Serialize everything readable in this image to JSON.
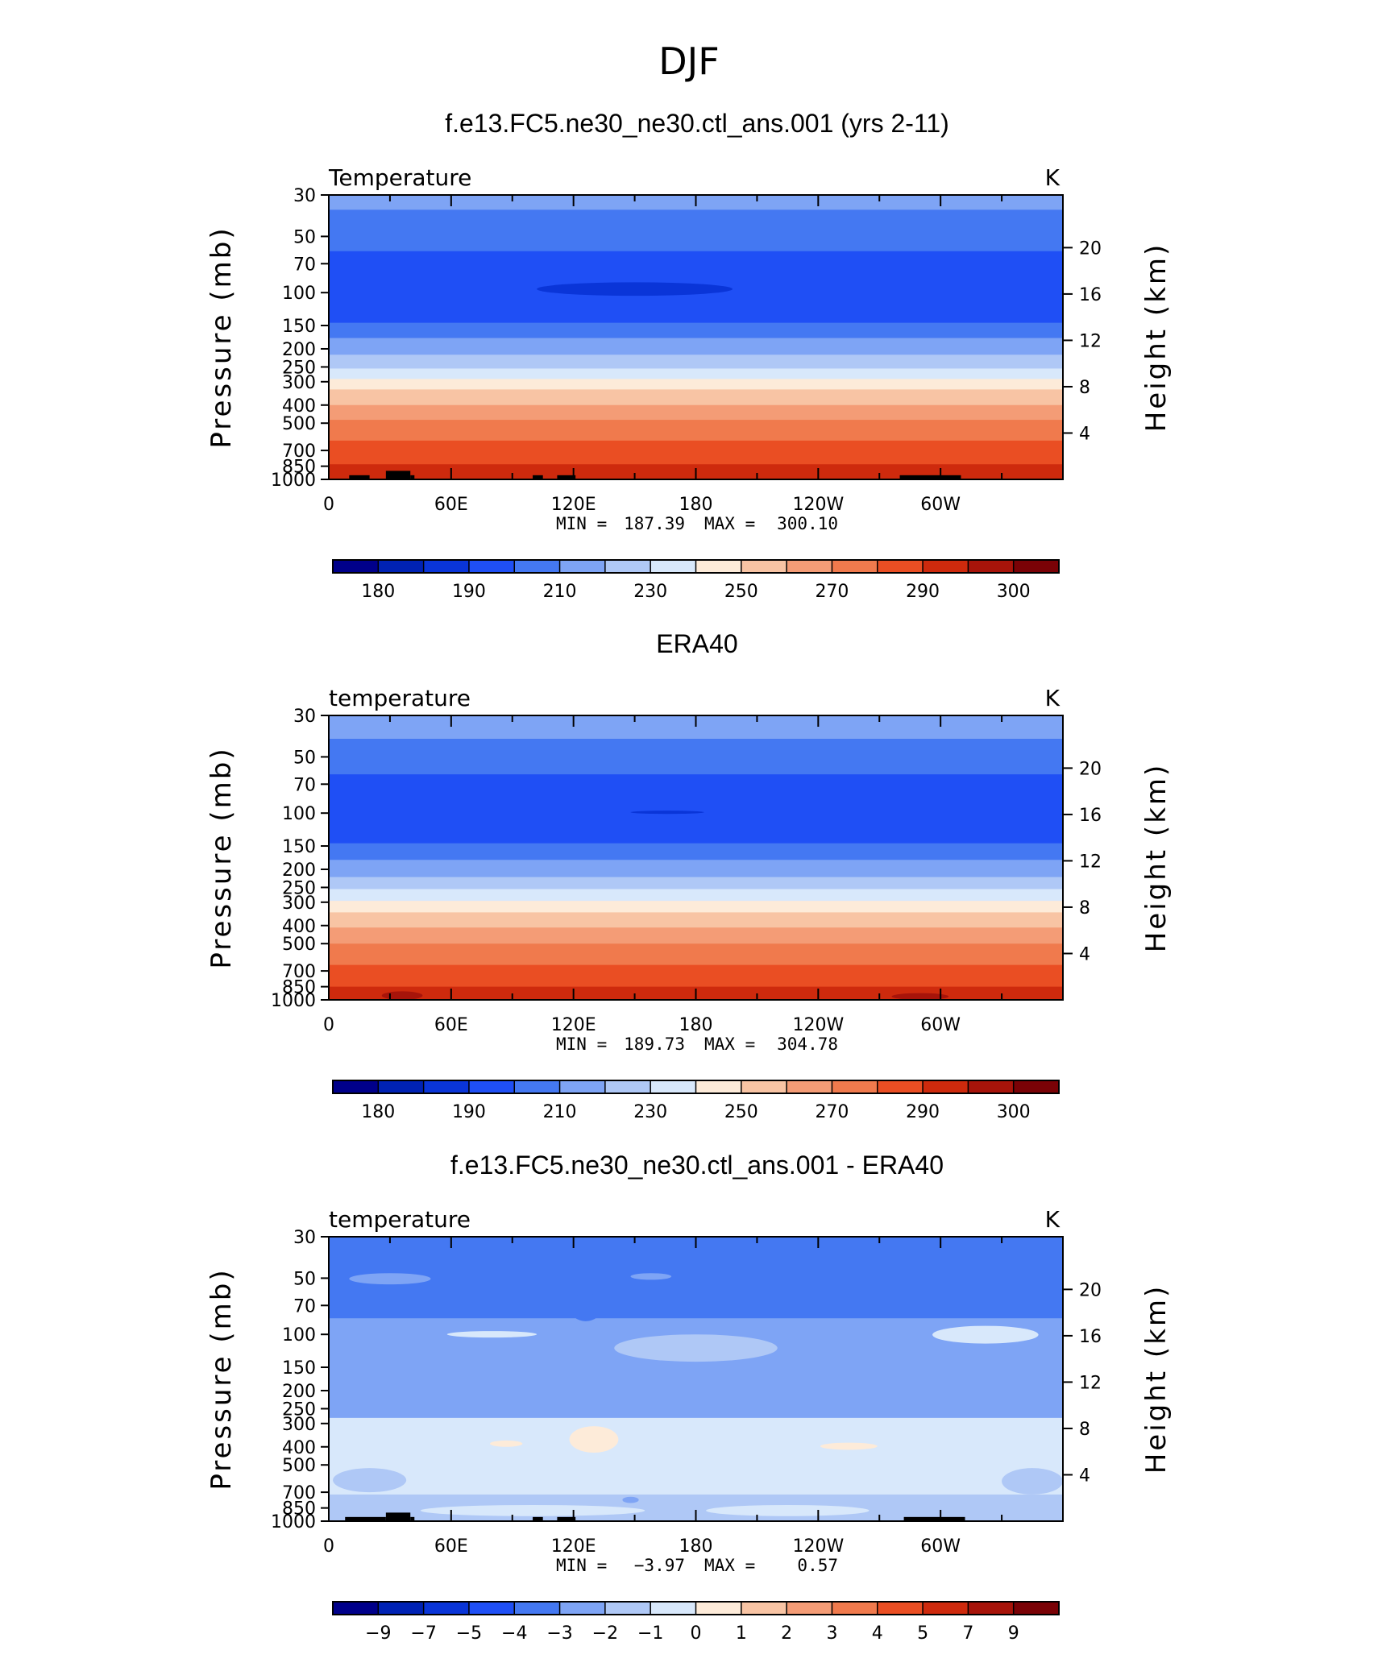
{
  "figure": {
    "main_title": "DJF"
  },
  "chart_data": [
    {
      "type": "heatmap",
      "title": "f.e13.FC5.ne30_ne30.ctl_ans.001 (yrs 2-11)",
      "variable_label": "Temperature",
      "units": "K",
      "ylabel": "Pressure  (mb)",
      "ylabel_right": "Height  (km)",
      "x_ticks": [
        "0",
        "60E",
        "120E",
        "180",
        "120W",
        "60W"
      ],
      "y_ticks_pressure": [
        "30",
        "50",
        "70",
        "100",
        "150",
        "200",
        "250",
        "300",
        "400",
        "500",
        "700",
        "850",
        "1000"
      ],
      "y_ticks_height": [
        "20",
        "16",
        "12",
        "8",
        "4"
      ],
      "y_scale": "log-pressure",
      "min_label": "MIN = ",
      "min_value": "187.39",
      "max_label": "MAX = ",
      "max_value": "300.10",
      "colorbar_labels": [
        "180",
        "190",
        "210",
        "230",
        "250",
        "270",
        "290",
        "300"
      ],
      "colorbar_colors": [
        "#00008a",
        "#0022b4",
        "#0a35d8",
        "#1f4ff5",
        "#4478f2",
        "#7ea4f5",
        "#afc8f6",
        "#d8e8fb",
        "#fdebd9",
        "#f8c4a4",
        "#f49c76",
        "#f07a4d",
        "#ea4e23",
        "#ce2a0d",
        "#a7140a",
        "#7a0206"
      ],
      "contour_bands": [
        {
          "pressure_top": 30,
          "pressure_bottom": 36,
          "color": "#7ea4f5"
        },
        {
          "pressure_top": 36,
          "pressure_bottom": 60,
          "color": "#4478f2"
        },
        {
          "pressure_top": 60,
          "pressure_bottom": 145,
          "color": "#1f4ff5"
        },
        {
          "pressure_top": 145,
          "pressure_bottom": 175,
          "color": "#4478f2"
        },
        {
          "pressure_top": 175,
          "pressure_bottom": 215,
          "color": "#7ea4f5"
        },
        {
          "pressure_top": 215,
          "pressure_bottom": 255,
          "color": "#afc8f6"
        },
        {
          "pressure_top": 255,
          "pressure_bottom": 290,
          "color": "#d8e8fb"
        },
        {
          "pressure_top": 290,
          "pressure_bottom": 330,
          "color": "#fdebd9"
        },
        {
          "pressure_top": 330,
          "pressure_bottom": 400,
          "color": "#f8c4a4"
        },
        {
          "pressure_top": 400,
          "pressure_bottom": 480,
          "color": "#f49c76"
        },
        {
          "pressure_top": 480,
          "pressure_bottom": 620,
          "color": "#f07a4d"
        },
        {
          "pressure_top": 620,
          "pressure_bottom": 830,
          "color": "#ea4e23"
        },
        {
          "pressure_top": 830,
          "pressure_bottom": 1000,
          "color": "#ce2a0d"
        }
      ],
      "features": [
        {
          "kind": "blob",
          "lon_center": 150,
          "pressure": 97,
          "lon_halfwidth": 48,
          "p_top": 88,
          "p_bottom": 104,
          "color": "#0a35d8"
        }
      ],
      "terrain": [
        [
          10,
          20,
          950
        ],
        [
          28,
          40,
          900
        ],
        [
          40,
          42,
          950
        ],
        [
          100,
          105,
          950
        ],
        [
          112,
          121,
          950
        ],
        [
          280,
          310,
          950
        ]
      ]
    },
    {
      "type": "heatmap",
      "title": "ERA40",
      "variable_label": "temperature",
      "units": "K",
      "ylabel": "Pressure  (mb)",
      "ylabel_right": "Height  (km)",
      "x_ticks": [
        "0",
        "60E",
        "120E",
        "180",
        "120W",
        "60W"
      ],
      "y_ticks_pressure": [
        "30",
        "50",
        "70",
        "100",
        "150",
        "200",
        "250",
        "300",
        "400",
        "500",
        "700",
        "850",
        "1000"
      ],
      "y_ticks_height": [
        "20",
        "16",
        "12",
        "8",
        "4"
      ],
      "y_scale": "log-pressure",
      "min_label": "MIN = ",
      "min_value": "189.73",
      "max_label": "MAX = ",
      "max_value": "304.78",
      "colorbar_labels": [
        "180",
        "190",
        "210",
        "230",
        "250",
        "270",
        "290",
        "300"
      ],
      "colorbar_colors": [
        "#00008a",
        "#0022b4",
        "#0a35d8",
        "#1f4ff5",
        "#4478f2",
        "#7ea4f5",
        "#afc8f6",
        "#d8e8fb",
        "#fdebd9",
        "#f8c4a4",
        "#f49c76",
        "#f07a4d",
        "#ea4e23",
        "#ce2a0d",
        "#a7140a",
        "#7a0206"
      ],
      "contour_bands": [
        {
          "pressure_top": 30,
          "pressure_bottom": 40,
          "color": "#7ea4f5"
        },
        {
          "pressure_top": 40,
          "pressure_bottom": 62,
          "color": "#4478f2"
        },
        {
          "pressure_top": 62,
          "pressure_bottom": 145,
          "color": "#1f4ff5"
        },
        {
          "pressure_top": 145,
          "pressure_bottom": 178,
          "color": "#4478f2"
        },
        {
          "pressure_top": 178,
          "pressure_bottom": 220,
          "color": "#7ea4f5"
        },
        {
          "pressure_top": 220,
          "pressure_bottom": 255,
          "color": "#afc8f6"
        },
        {
          "pressure_top": 255,
          "pressure_bottom": 295,
          "color": "#d8e8fb"
        },
        {
          "pressure_top": 295,
          "pressure_bottom": 340,
          "color": "#fdebd9"
        },
        {
          "pressure_top": 340,
          "pressure_bottom": 410,
          "color": "#f8c4a4"
        },
        {
          "pressure_top": 410,
          "pressure_bottom": 500,
          "color": "#f49c76"
        },
        {
          "pressure_top": 500,
          "pressure_bottom": 650,
          "color": "#f07a4d"
        },
        {
          "pressure_top": 650,
          "pressure_bottom": 850,
          "color": "#ea4e23"
        },
        {
          "pressure_top": 850,
          "pressure_bottom": 1000,
          "color": "#ce2a0d"
        }
      ],
      "features": [
        {
          "kind": "blob",
          "lon_center": 166,
          "pressure": 99,
          "lon_halfwidth": 18,
          "p_top": 97,
          "p_bottom": 101,
          "color": "#0a35d8"
        },
        {
          "kind": "blob",
          "lon_center": 36,
          "pressure": 960,
          "lon_halfwidth": 10,
          "p_top": 900,
          "p_bottom": 1000,
          "color": "#a7140a"
        },
        {
          "kind": "blob",
          "lon_center": 290,
          "pressure": 960,
          "lon_halfwidth": 14,
          "p_top": 920,
          "p_bottom": 1000,
          "color": "#a7140a"
        }
      ],
      "terrain": []
    },
    {
      "type": "heatmap",
      "title": "f.e13.FC5.ne30_ne30.ctl_ans.001 - ERA40",
      "variable_label": "temperature",
      "units": "K",
      "ylabel": "Pressure  (mb)",
      "ylabel_right": "Height  (km)",
      "x_ticks": [
        "0",
        "60E",
        "120E",
        "180",
        "120W",
        "60W"
      ],
      "y_ticks_pressure": [
        "30",
        "50",
        "70",
        "100",
        "150",
        "200",
        "250",
        "300",
        "400",
        "500",
        "700",
        "850",
        "1000"
      ],
      "y_ticks_height": [
        "20",
        "16",
        "12",
        "8",
        "4"
      ],
      "y_scale": "log-pressure",
      "min_label": "MIN = ",
      "min_value": "−3.97",
      "max_label": "MAX = ",
      "max_value": "0.57",
      "colorbar_labels": [
        "−9",
        "−7",
        "−5",
        "−4",
        "−3",
        "−2",
        "−1",
        "0",
        "1",
        "2",
        "3",
        "4",
        "5",
        "7",
        "9"
      ],
      "colorbar_colors": [
        "#00008a",
        "#0022b4",
        "#0a35d8",
        "#1f4ff5",
        "#4478f2",
        "#7ea4f5",
        "#afc8f6",
        "#d8e8fb",
        "#fdebd9",
        "#f8c4a4",
        "#f49c76",
        "#f07a4d",
        "#ea4e23",
        "#ce2a0d",
        "#a7140a",
        "#7a0206"
      ],
      "contour_bands": [
        {
          "pressure_top": 30,
          "pressure_bottom": 82,
          "color": "#4478f2"
        },
        {
          "pressure_top": 82,
          "pressure_bottom": 185,
          "color": "#7ea4f5"
        },
        {
          "pressure_top": 185,
          "pressure_bottom": 280,
          "color": "#7ea4f5"
        },
        {
          "pressure_top": 280,
          "pressure_bottom": 720,
          "color": "#d8e8fb"
        },
        {
          "pressure_top": 720,
          "pressure_bottom": 1000,
          "color": "#afc8f6"
        }
      ],
      "features": [
        {
          "kind": "blob",
          "lon_center": 30,
          "pressure": 50,
          "lon_halfwidth": 20,
          "p_top": 47,
          "p_bottom": 54,
          "color": "#7ea4f5"
        },
        {
          "kind": "blob",
          "lon_center": 158,
          "pressure": 49,
          "lon_halfwidth": 10,
          "p_top": 47,
          "p_bottom": 51,
          "color": "#7ea4f5"
        },
        {
          "kind": "blob",
          "lon_center": 80,
          "pressure": 100,
          "lon_halfwidth": 22,
          "p_top": 96,
          "p_bottom": 104,
          "color": "#d8e8fb"
        },
        {
          "kind": "blob",
          "lon_center": 180,
          "pressure": 120,
          "lon_halfwidth": 40,
          "p_top": 100,
          "p_bottom": 140,
          "color": "#afc8f6"
        },
        {
          "kind": "blob",
          "lon_center": 322,
          "pressure": 100,
          "lon_halfwidth": 26,
          "p_top": 90,
          "p_bottom": 112,
          "color": "#d8e8fb"
        },
        {
          "kind": "blob",
          "lon_center": 126,
          "pressure": 65,
          "lon_halfwidth": 8,
          "p_top": 60,
          "p_bottom": 85,
          "color": "#4478f2"
        },
        {
          "kind": "blob",
          "lon_center": 250,
          "pressure": 200,
          "lon_halfwidth": 70,
          "p_top": 180,
          "p_bottom": 230,
          "color": "#7ea4f5"
        },
        {
          "kind": "blob",
          "lon_center": 130,
          "pressure": 360,
          "lon_halfwidth": 12,
          "p_top": 310,
          "p_bottom": 430,
          "color": "#fdebd9"
        },
        {
          "kind": "blob",
          "lon_center": 87,
          "pressure": 385,
          "lon_halfwidth": 8,
          "p_top": 370,
          "p_bottom": 400,
          "color": "#fdebd9"
        },
        {
          "kind": "blob",
          "lon_center": 255,
          "pressure": 395,
          "lon_halfwidth": 14,
          "p_top": 380,
          "p_bottom": 415,
          "color": "#fdebd9"
        },
        {
          "kind": "blob",
          "lon_center": 20,
          "pressure": 600,
          "lon_halfwidth": 18,
          "p_top": 520,
          "p_bottom": 700,
          "color": "#afc8f6"
        },
        {
          "kind": "blob",
          "lon_center": 345,
          "pressure": 620,
          "lon_halfwidth": 15,
          "p_top": 520,
          "p_bottom": 720,
          "color": "#afc8f6"
        },
        {
          "kind": "blob",
          "lon_center": 100,
          "pressure": 870,
          "lon_halfwidth": 55,
          "p_top": 820,
          "p_bottom": 940,
          "color": "#d8e8fb"
        },
        {
          "kind": "blob",
          "lon_center": 225,
          "pressure": 870,
          "lon_halfwidth": 40,
          "p_top": 820,
          "p_bottom": 940,
          "color": "#d8e8fb"
        },
        {
          "kind": "blob",
          "lon_center": 148,
          "pressure": 770,
          "lon_halfwidth": 4,
          "p_top": 740,
          "p_bottom": 800,
          "color": "#7ea4f5"
        }
      ],
      "terrain": [
        [
          8,
          28,
          950
        ],
        [
          28,
          40,
          900
        ],
        [
          40,
          42,
          950
        ],
        [
          100,
          105,
          950
        ],
        [
          112,
          121,
          950
        ],
        [
          282,
          312,
          950
        ]
      ]
    }
  ]
}
